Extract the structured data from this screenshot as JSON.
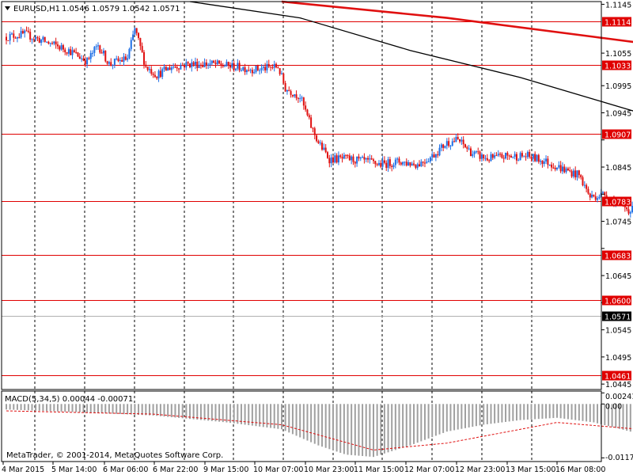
{
  "header": {
    "symbol_text": "EURUSD,H1",
    "ohlc_text": "1.0546 1.0579 1.0542 1.0571"
  },
  "macd_header": {
    "text": "MACD(5,34,5) 0.00044 -0.00071"
  },
  "copyright": {
    "text": "MetaTrader, © 2001-2014, MetaQuotes Software Corp."
  },
  "colors": {
    "bull": "#1e6fe6",
    "bear": "#e01010",
    "hline": "#e00000",
    "ma_slow": "#e01010",
    "ma_fast": "#000000",
    "macd_hist": "#a0a0a0",
    "macd_signal": "#e01010",
    "grid": "#000000"
  },
  "chart_data": [
    {
      "type": "candlestick",
      "symbol": "EURUSD",
      "timeframe": "H1",
      "price_axis": {
        "ticks": [
          "1.1145",
          "1.1055",
          "1.0995",
          "1.0945",
          "1.0895",
          "1.0845",
          "1.0795",
          "1.0745",
          "1.0695",
          "1.0645",
          "1.0595",
          "1.0545",
          "1.0495",
          "1.0445"
        ],
        "ylim": [
          1.0435,
          1.115
        ]
      },
      "time_axis": {
        "labels": [
          "4 Mar 2015",
          "5 Mar 14:00",
          "6 Mar 06:00",
          "6 Mar 22:00",
          "9 Mar 15:00",
          "10 Mar 07:00",
          "10 Mar 23:00",
          "11 Mar 15:00",
          "12 Mar 07:00",
          "12 Mar 23:00",
          "13 Mar 15:00",
          "16 Mar 08:00"
        ]
      },
      "price_levels": [
        {
          "value": 1.1114,
          "label": "1.1114"
        },
        {
          "value": 1.1033,
          "label": "1.1033"
        },
        {
          "value": 1.0907,
          "label": "1.0907"
        },
        {
          "value": 1.0783,
          "label": "1.0783"
        },
        {
          "value": 1.0683,
          "label": "1.0683"
        },
        {
          "value": 1.06,
          "label": "1.0600"
        },
        {
          "value": 1.0461,
          "label": "1.0461"
        }
      ],
      "current_price": {
        "value": 1.0571,
        "label": "1.0571"
      },
      "close_path": [
        [
          0,
          1.1085
        ],
        [
          10,
          1.109
        ],
        [
          22,
          1.1075
        ],
        [
          34,
          1.106
        ],
        [
          44,
          1.104
        ],
        [
          50,
          1.107
        ],
        [
          56,
          1.1035
        ],
        [
          66,
          1.1045
        ],
        [
          70,
          1.11
        ],
        [
          76,
          1.103
        ],
        [
          82,
          1.1015
        ],
        [
          90,
          1.103
        ],
        [
          100,
          1.1035
        ],
        [
          112,
          1.1035
        ],
        [
          124,
          1.103
        ],
        [
          136,
          1.1025
        ],
        [
          148,
          1.103
        ],
        [
          152,
          1.099
        ],
        [
          160,
          1.0975
        ],
        [
          166,
          1.092
        ],
        [
          170,
          1.089
        ],
        [
          176,
          1.086
        ],
        [
          186,
          1.086
        ],
        [
          196,
          1.0855
        ],
        [
          204,
          1.085
        ],
        [
          214,
          1.0855
        ],
        [
          224,
          1.085
        ],
        [
          232,
          1.0865
        ],
        [
          240,
          1.089
        ],
        [
          246,
          1.0895
        ],
        [
          254,
          1.087
        ],
        [
          262,
          1.086
        ],
        [
          272,
          1.0865
        ],
        [
          284,
          1.0865
        ],
        [
          294,
          1.0855
        ],
        [
          304,
          1.084
        ],
        [
          312,
          1.083
        ],
        [
          318,
          1.079
        ],
        [
          326,
          1.0795
        ],
        [
          332,
          1.078
        ],
        [
          340,
          1.0765
        ],
        [
          348,
          1.077
        ],
        [
          356,
          1.078
        ],
        [
          362,
          1.074
        ],
        [
          370,
          1.072
        ],
        [
          378,
          1.07
        ],
        [
          386,
          1.0685
        ],
        [
          392,
          1.07
        ],
        [
          400,
          1.0695
        ],
        [
          410,
          1.069
        ],
        [
          420,
          1.0695
        ],
        [
          428,
          1.068
        ],
        [
          434,
          1.061
        ],
        [
          440,
          1.058
        ],
        [
          448,
          1.0575
        ],
        [
          456,
          1.059
        ],
        [
          462,
          1.056
        ],
        [
          470,
          1.053
        ],
        [
          478,
          1.054
        ],
        [
          486,
          1.055
        ],
        [
          494,
          1.054
        ],
        [
          500,
          1.053
        ],
        [
          506,
          1.05
        ],
        [
          514,
          1.052
        ],
        [
          520,
          1.056
        ],
        [
          526,
          1.063
        ],
        [
          534,
          1.0605
        ],
        [
          540,
          1.0635
        ],
        [
          548,
          1.061
        ],
        [
          556,
          1.0625
        ],
        [
          564,
          1.061
        ],
        [
          572,
          1.0625
        ],
        [
          580,
          1.062
        ],
        [
          588,
          1.062
        ],
        [
          596,
          1.061
        ],
        [
          604,
          1.0615
        ],
        [
          612,
          1.062
        ],
        [
          618,
          1.059
        ],
        [
          626,
          1.061
        ],
        [
          632,
          1.059
        ],
        [
          640,
          1.0575
        ],
        [
          646,
          1.054
        ],
        [
          652,
          1.052
        ],
        [
          658,
          1.05
        ],
        [
          664,
          1.0485
        ],
        [
          670,
          1.049
        ],
        [
          678,
          1.0495
        ],
        [
          686,
          1.0505
        ],
        [
          692,
          1.052
        ],
        [
          700,
          1.0525
        ],
        [
          708,
          1.052
        ],
        [
          716,
          1.053
        ],
        [
          722,
          1.0535
        ],
        [
          728,
          1.054
        ],
        [
          734,
          1.0571
        ]
      ],
      "ma_slow": [
        [
          150,
          1.115
        ],
        [
          240,
          1.112
        ],
        [
          320,
          1.1085
        ],
        [
          400,
          1.105
        ],
        [
          480,
          1.1
        ],
        [
          560,
          1.095
        ],
        [
          640,
          1.089
        ],
        [
          690,
          1.084
        ],
        [
          734,
          1.079
        ]
      ],
      "ma_fast": [
        [
          100,
          1.115
        ],
        [
          160,
          1.112
        ],
        [
          220,
          1.106
        ],
        [
          280,
          1.101
        ],
        [
          340,
          1.095
        ],
        [
          400,
          1.089
        ],
        [
          460,
          1.082
        ],
        [
          510,
          1.075
        ],
        [
          560,
          1.0705
        ],
        [
          620,
          1.068
        ],
        [
          680,
          1.063
        ],
        [
          734,
          1.06
        ]
      ]
    },
    {
      "type": "bar",
      "indicator": "MACD",
      "params": "5,34,5",
      "values_text": [
        "0.00044",
        "-0.00071"
      ],
      "axis_ticks": [
        "0.00241",
        "0.00",
        "-0.0117"
      ],
      "ylim": [
        -0.0125,
        0.0028
      ],
      "histogram_path": [
        [
          0,
          -0.0012
        ],
        [
          40,
          -0.0018
        ],
        [
          80,
          -0.0025
        ],
        [
          120,
          -0.004
        ],
        [
          150,
          -0.0055
        ],
        [
          170,
          -0.009
        ],
        [
          185,
          -0.011
        ],
        [
          200,
          -0.0115
        ],
        [
          220,
          -0.009
        ],
        [
          240,
          -0.006
        ],
        [
          260,
          -0.0045
        ],
        [
          280,
          -0.0035
        ],
        [
          300,
          -0.003
        ],
        [
          320,
          -0.004
        ],
        [
          340,
          -0.006
        ],
        [
          360,
          -0.0075
        ],
        [
          380,
          -0.008
        ],
        [
          400,
          -0.0065
        ],
        [
          420,
          -0.0055
        ],
        [
          440,
          -0.0085
        ],
        [
          460,
          -0.0105
        ],
        [
          475,
          -0.0112
        ],
        [
          490,
          -0.01
        ],
        [
          505,
          -0.0085
        ],
        [
          520,
          -0.004
        ],
        [
          530,
          0.0005
        ],
        [
          545,
          0.002
        ],
        [
          560,
          0.0018
        ],
        [
          580,
          0.001
        ],
        [
          600,
          0.0005
        ],
        [
          620,
          -0.001
        ],
        [
          635,
          -0.002
        ],
        [
          650,
          -0.0045
        ],
        [
          665,
          -0.0065
        ],
        [
          680,
          -0.0055
        ],
        [
          695,
          -0.004
        ],
        [
          710,
          -0.0025
        ],
        [
          725,
          -0.0015
        ],
        [
          734,
          0.0004
        ]
      ],
      "signal_path": [
        [
          0,
          -0.0015
        ],
        [
          80,
          -0.0022
        ],
        [
          150,
          -0.0045
        ],
        [
          200,
          -0.01
        ],
        [
          240,
          -0.0085
        ],
        [
          300,
          -0.004
        ],
        [
          360,
          -0.006
        ],
        [
          420,
          -0.007
        ],
        [
          475,
          -0.01
        ],
        [
          520,
          -0.007
        ],
        [
          545,
          0.0008
        ],
        [
          580,
          0.0012
        ],
        [
          620,
          -0.0002
        ],
        [
          665,
          -0.005
        ],
        [
          710,
          -0.0035
        ],
        [
          734,
          -0.0007
        ]
      ]
    }
  ]
}
